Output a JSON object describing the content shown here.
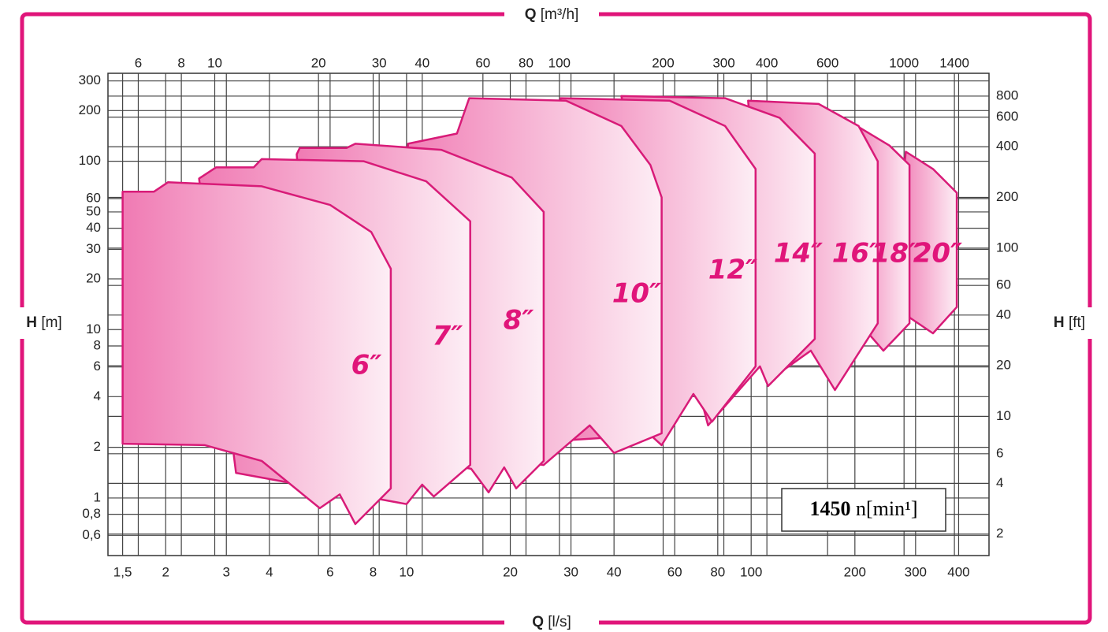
{
  "chart_data": {
    "type": "region",
    "x_axis": {
      "symbol": "Q",
      "unit": "[l/s]"
    },
    "x2_axis": {
      "symbol": "Q",
      "unit": "[m³/h]"
    },
    "y_axis": {
      "symbol": "H",
      "unit": "[m]"
    },
    "y2_axis": {
      "symbol": "H",
      "unit": "[ft]"
    },
    "xscale": "log",
    "yscale": "log",
    "xlim": [
      1.36,
      490
    ],
    "x2lim": [
      4.9,
      1764
    ],
    "ylim": [
      0.455,
      333
    ],
    "y2lim": [
      1.49,
      1093
    ],
    "xticks": [
      {
        "value": 1.5,
        "label": "1,5"
      },
      2,
      3,
      4,
      6,
      8,
      10,
      20,
      30,
      40,
      60,
      80,
      100,
      200,
      300,
      400
    ],
    "x2ticks": [
      6,
      8,
      10,
      20,
      30,
      40,
      60,
      80,
      100,
      200,
      300,
      400,
      600,
      1000,
      1400
    ],
    "yticks": [
      300,
      200,
      100,
      60,
      50,
      40,
      20,
      30,
      10,
      8,
      6,
      4,
      2,
      1,
      {
        "value": 0.8,
        "label": "0,8"
      },
      {
        "value": 0.6,
        "label": "0,6"
      }
    ],
    "y2ticks": [
      800,
      600,
      400,
      200,
      100,
      60,
      40,
      20,
      10,
      6,
      4,
      2
    ],
    "grid": true,
    "color": "#d81b78",
    "speed": "1450",
    "speed_unit": "n[min¹]",
    "series": [
      {
        "name": "6″",
        "x": [
          1.5,
          1.85,
          2.03,
          3.8,
          6.0,
          7.9,
          9.0,
          9.0,
          7.1,
          6.4,
          5.6,
          3.8,
          2.6,
          1.5
        ],
        "values": [
          66,
          66,
          75,
          71,
          55,
          38,
          23,
          1.14,
          0.7,
          1.05,
          0.87,
          1.66,
          2.06,
          2.1
        ]
      },
      {
        "name": "7″",
        "x": [
          2.5,
          2.8,
          3.6,
          3.8,
          7.5,
          11.4,
          15.3,
          15.3,
          12.0,
          11.1,
          10.0,
          3.2
        ],
        "values": [
          79,
          92,
          92,
          103,
          100,
          76,
          44,
          1.57,
          1.02,
          1.2,
          0.92,
          1.41
        ]
      },
      {
        "name": "8″",
        "x": [
          4.8,
          4.9,
          6.7,
          7.1,
          12.6,
          20.2,
          25,
          25,
          20.8,
          19.2,
          17.3,
          15.4,
          5.6
        ],
        "values": [
          110,
          120,
          120,
          127,
          117,
          80,
          50,
          1.66,
          1.14,
          1.52,
          1.08,
          1.49,
          2.17
        ]
      },
      {
        "name": "10″",
        "x": [
          10.1,
          14.0,
          15.2,
          29,
          42,
          51,
          55,
          55,
          40,
          34,
          25,
          9.2
        ],
        "values": [
          127,
          146,
          237,
          229,
          162,
          95,
          61,
          2.42,
          1.85,
          2.7,
          1.57,
          2.17
        ]
      },
      {
        "name": "12″",
        "x": [
          28,
          58,
          84,
          103,
          103,
          77,
          68,
          55,
          51,
          26
        ],
        "values": [
          237,
          229,
          162,
          90,
          6.05,
          2.84,
          4.15,
          2.06,
          2.37,
          2.17
        ]
      },
      {
        "name": "14″",
        "x": [
          42,
          84,
          121,
          153,
          153,
          112,
          106,
          75
        ],
        "values": [
          244,
          237,
          181,
          111,
          8.8,
          4.62,
          6.05,
          2.7
        ]
      },
      {
        "name": "16″",
        "x": [
          98,
          157,
          205,
          233,
          233,
          175,
          149,
          115
        ],
        "values": [
          229,
          219,
          162,
          100,
          10.9,
          4.38,
          7.5,
          5.15
        ]
      },
      {
        "name": "18″",
        "x": [
          194,
          252,
          288,
          288,
          242,
          216
        ],
        "values": [
          171,
          124,
          95,
          10.9,
          7.5,
          9.8
        ]
      },
      {
        "name": "20″",
        "x": [
          281,
          337,
          395,
          395,
          337,
          288,
          266
        ],
        "values": [
          114,
          90,
          65,
          13.6,
          9.5,
          11.8,
          35.8
        ]
      }
    ]
  }
}
